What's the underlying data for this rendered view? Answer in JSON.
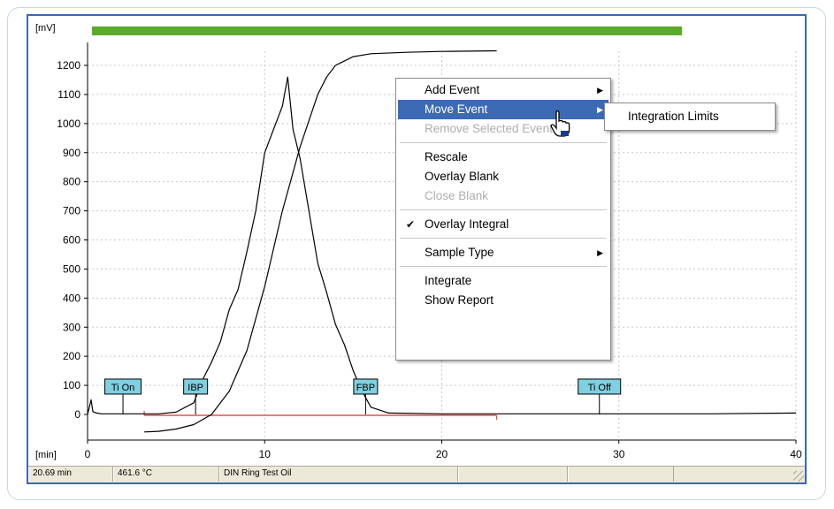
{
  "chart": {
    "y_unit_label": "[mV]",
    "x_unit_label": "[min]",
    "y_ticks": [
      1200,
      1100,
      1000,
      900,
      800,
      700,
      600,
      500,
      400,
      300,
      200,
      100,
      0
    ],
    "x_ticks": [
      0,
      10,
      20,
      30,
      40
    ],
    "markers": [
      {
        "label": "Ti On",
        "time": 2.0
      },
      {
        "label": "IBP",
        "time": 6.1
      },
      {
        "label": "FBP",
        "time": 15.7
      },
      {
        "label": "Ti Off",
        "time": 28.9
      }
    ],
    "progress_bar_color": "#5aab2a",
    "integration_limit_color": "#e05050",
    "integration_limits": [
      3.2,
      23.1
    ]
  },
  "chart_data": {
    "type": "line",
    "xlabel": "[min]",
    "ylabel": "[mV]",
    "xlim": [
      0,
      40
    ],
    "ylim": [
      -60,
      1250
    ],
    "grid": true,
    "series": [
      {
        "x": [
          0.0,
          0.2,
          0.3,
          0.5,
          0.8,
          2,
          4,
          5,
          6,
          6.5,
          7,
          7.5,
          8,
          8.5,
          9,
          9.5,
          10,
          10.5,
          11,
          11.3,
          11.6,
          12,
          12.5,
          13,
          13.5,
          14,
          14.5,
          15,
          15.5,
          16,
          17,
          20,
          25,
          30,
          35,
          40
        ],
        "y": [
          0,
          50,
          10,
          5,
          2,
          2,
          2,
          8,
          40,
          120,
          180,
          250,
          360,
          430,
          560,
          700,
          900,
          980,
          1060,
          1160,
          980,
          880,
          700,
          520,
          420,
          310,
          240,
          150,
          80,
          25,
          5,
          2,
          2,
          2,
          2,
          5
        ]
      },
      {
        "x": [
          3.2,
          4,
          5,
          6,
          7,
          8,
          9,
          10,
          11,
          12,
          13,
          13.5,
          14,
          15,
          16,
          18,
          20,
          23.1
        ],
        "y": [
          -60,
          -58,
          -50,
          -35,
          0,
          80,
          220,
          440,
          700,
          920,
          1100,
          1160,
          1200,
          1230,
          1240,
          1245,
          1248,
          1250
        ]
      }
    ]
  },
  "status": {
    "time": "20.69 min",
    "temperature": "461.6 °C",
    "sample_name": "DIN Ring Test Oil",
    "extra1": "",
    "extra2": ""
  },
  "context_menu": {
    "add_event": "Add Event",
    "move_event": "Move Event",
    "remove_selected_event": "Remove Selected Event",
    "rescale": "Rescale",
    "overlay_blank": "Overlay Blank",
    "close_blank": "Close Blank",
    "overlay_integral": "Overlay Integral",
    "sample_type": "Sample Type",
    "integrate": "Integrate",
    "show_report": "Show Report"
  },
  "submenu": {
    "integration_limits": "Integration Limits"
  }
}
